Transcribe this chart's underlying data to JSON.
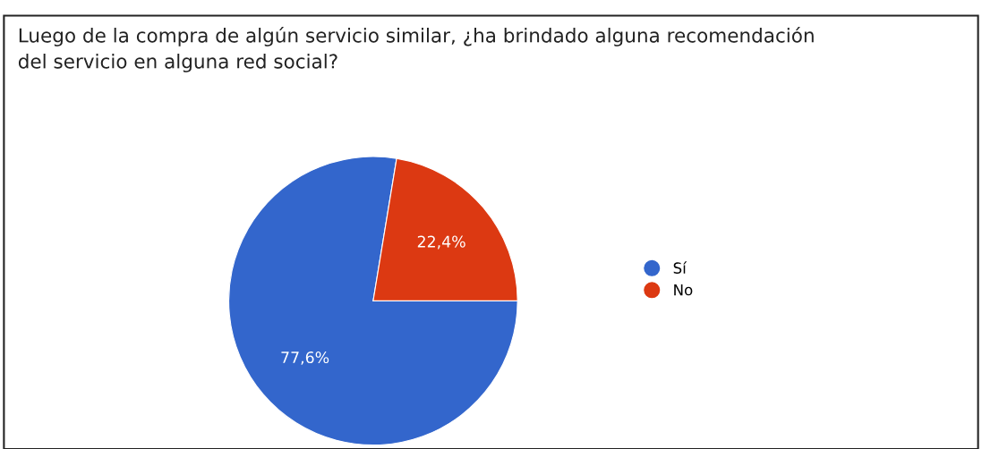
{
  "chart_data": {
    "type": "pie",
    "title": "Luego de la compra de algún servicio similar, ¿ha brindado alguna recomendación\ndel servicio en alguna red social?",
    "categories": [
      "Sí",
      "No"
    ],
    "values": [
      77.6,
      22.4
    ],
    "colors": [
      "#3366cc",
      "#dc3912"
    ],
    "value_labels": [
      "77,6%",
      "22,4%"
    ],
    "legend": "right"
  }
}
